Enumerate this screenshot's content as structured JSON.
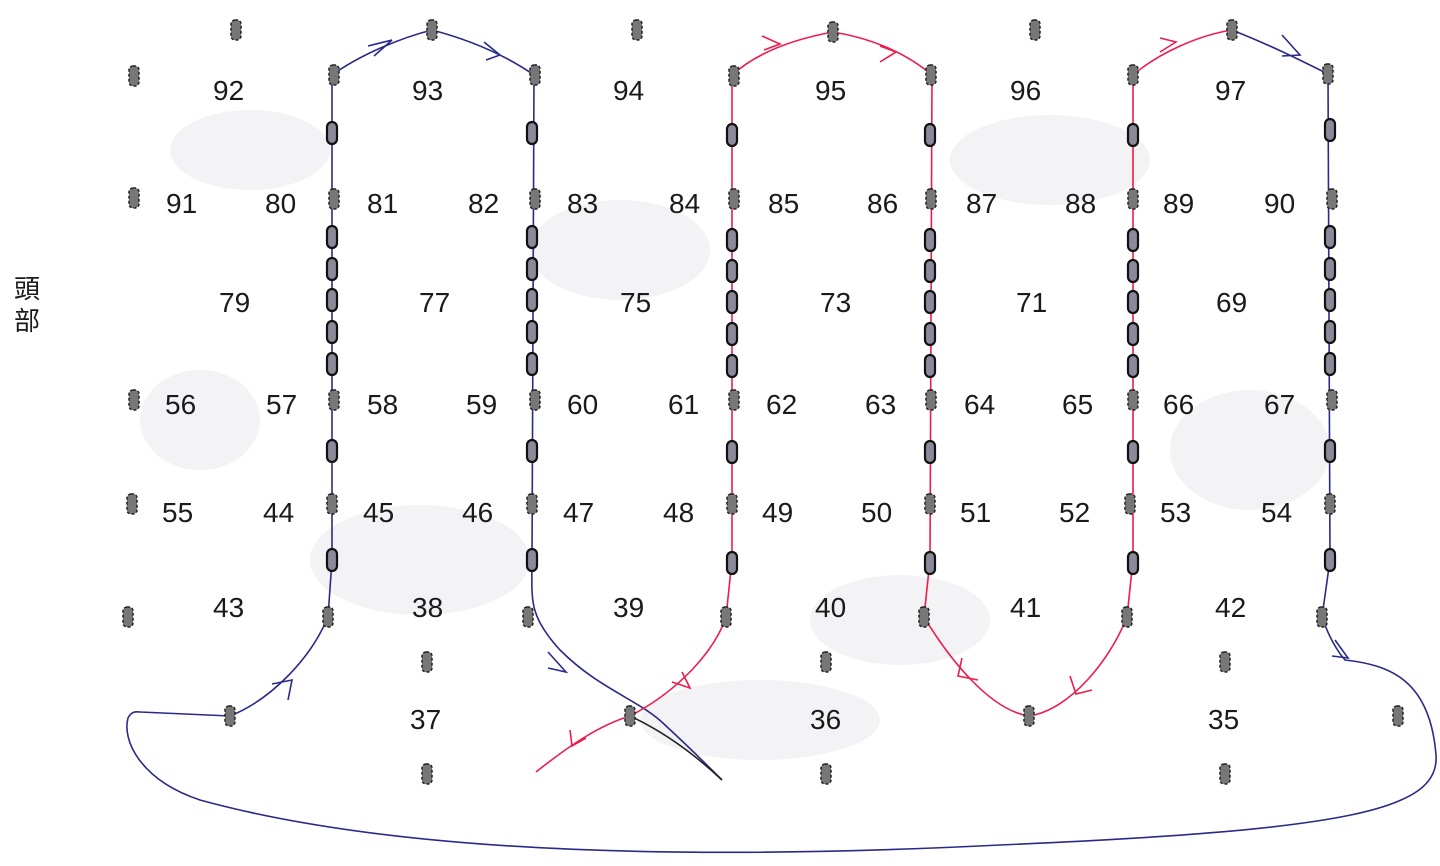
{
  "side_label": "頭部",
  "colors": {
    "blue": "#2a2a88",
    "red": "#ee1c4c",
    "black": "#222222"
  },
  "labels": [
    "92",
    "93",
    "94",
    "95",
    "96",
    "97",
    "91",
    "80",
    "81",
    "82",
    "83",
    "84",
    "85",
    "86",
    "87",
    "88",
    "89",
    "90",
    "79",
    "77",
    "75",
    "73",
    "71",
    "69",
    "56",
    "57",
    "58",
    "59",
    "60",
    "61",
    "62",
    "63",
    "64",
    "65",
    "66",
    "67",
    "55",
    "44",
    "45",
    "46",
    "47",
    "48",
    "49",
    "50",
    "51",
    "52",
    "53",
    "54",
    "43",
    "38",
    "39",
    "40",
    "41",
    "42",
    "37",
    "36",
    "35"
  ]
}
